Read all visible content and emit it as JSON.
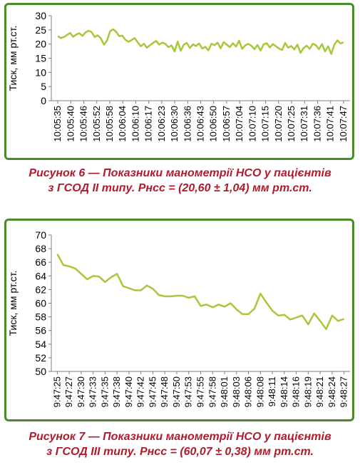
{
  "charts": [
    {
      "caption_line1": "Рисунок 6 — Показники манометрії НСО у пацієнтів",
      "caption_line2": "з ГСОД II типу. Рнсс = (20,60 ± 1,04) мм рт.ст."
    },
    {
      "caption_line1": "Рисунок 7 — Показники манометрії НСО у пацієнтів",
      "caption_line2": "з ГСОД III типу. Рнсс = (60,07 ± 0,38) мм рт.ст."
    }
  ],
  "chart_data": [
    {
      "type": "line",
      "ylabel": "Тиск, мм рт.ст.",
      "ylim": [
        0,
        30
      ],
      "yticks": [
        "0",
        "5",
        "10",
        "15",
        "20",
        "25",
        "30"
      ],
      "grid": false,
      "line_color": "#a6c93a",
      "x_tick_labels": [
        "10:05:35",
        "10:05:40",
        "10:05:46",
        "10:05:52",
        "10:05:58",
        "10:06:04",
        "10:06:10",
        "10:06:17",
        "10:06:23",
        "10:06:30",
        "10:06:36",
        "10:06:43",
        "10:06:50",
        "10:06:57",
        "10:07:04",
        "10:07:10",
        "10:07:15",
        "10:07:20",
        "10:07:25",
        "10:07:31",
        "10:07:36",
        "10:07:41",
        "10:07:47"
      ],
      "series": [
        {
          "values": [
            22.8,
            22.1,
            22.5,
            23.2,
            23.9,
            22.6,
            23.4,
            23.8,
            22.9,
            24.1,
            24.7,
            24.2,
            22.5,
            23.1,
            22.0,
            19.8,
            21.2,
            24.5,
            25.2,
            24.3,
            22.8,
            23.0,
            21.5,
            20.8,
            21.4,
            22.1,
            20.6,
            19.2,
            20.1,
            18.7,
            19.6,
            20.4,
            21.1,
            19.8,
            20.5,
            20.1,
            18.9,
            19.5,
            17.4,
            20.9,
            17.6,
            19.8,
            20.4,
            18.6,
            19.9,
            19.3,
            20.2,
            18.4,
            19.0,
            17.8,
            20.1,
            19.6,
            20.5,
            18.5,
            20.7,
            19.8,
            18.9,
            20.3,
            19.1,
            21.2,
            18.3,
            19.5,
            20.1,
            19.4,
            18.2,
            19.7,
            17.7,
            19.9,
            20.3,
            18.8,
            20.0,
            19.2,
            18.4,
            17.9,
            20.4,
            18.7,
            19.3,
            18.1,
            19.8,
            16.9,
            18.6,
            19.4,
            18.3,
            20.1,
            19.6,
            18.2,
            20.0,
            17.4,
            19.2,
            16.5,
            19.8,
            21.3,
            20.2,
            20.6
          ]
        }
      ]
    },
    {
      "type": "line",
      "ylabel": "Тиск, мм рт.ст.",
      "ylim": [
        50,
        70
      ],
      "yticks": [
        "50",
        "52",
        "54",
        "56",
        "58",
        "60",
        "62",
        "64",
        "66",
        "68",
        "70"
      ],
      "grid": false,
      "line_color": "#a6c93a",
      "x_tick_labels": [
        "9:47:25",
        "9:47:27",
        "9:47:30",
        "9:47:33",
        "9:47:35",
        "9:47:38",
        "9:47:40",
        "9:47:42",
        "9:47:45",
        "9:47:48",
        "9:47:50",
        "9:47:53",
        "9:47:55",
        "9:47:58",
        "9:48:01",
        "9:48:03",
        "9:48:06",
        "9:48:08",
        "9:48:11",
        "9:48:14",
        "9:48:16",
        "9:48:19",
        "9:48:21",
        "9:48:24",
        "9:48:27"
      ],
      "series": [
        {
          "values": [
            67.2,
            65.6,
            65.4,
            65.1,
            64.3,
            63.5,
            64.0,
            63.9,
            63.1,
            63.8,
            64.3,
            62.5,
            62.2,
            61.9,
            61.9,
            62.6,
            62.1,
            61.2,
            61.0,
            61.0,
            61.1,
            61.1,
            60.8,
            61.0,
            59.6,
            59.8,
            59.4,
            59.8,
            59.5,
            60.0,
            59.1,
            58.4,
            58.4,
            59.2,
            61.4,
            60.1,
            58.9,
            58.2,
            58.3,
            57.6,
            57.9,
            58.2,
            56.9,
            58.5,
            57.4,
            56.2,
            58.2,
            57.4,
            57.7
          ]
        }
      ]
    }
  ]
}
